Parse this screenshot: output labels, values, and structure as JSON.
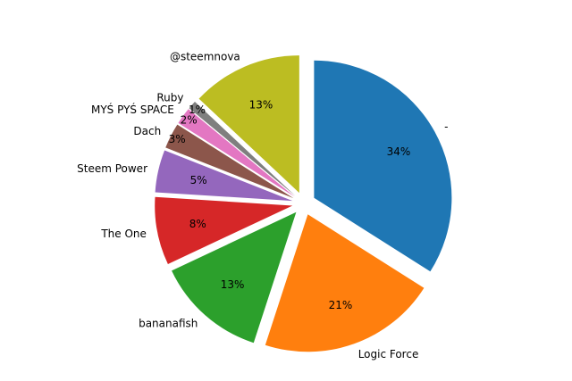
{
  "figure": {
    "background": "#ffffff"
  },
  "chart_data": {
    "type": "pie",
    "title": "",
    "start_angle_deg": 90,
    "direction": "clockwise",
    "legend": "none",
    "exploded": true,
    "slices": [
      {
        "label": "-",
        "value": 34,
        "pct_label": "34%",
        "color": "#1f77b4"
      },
      {
        "label": "Logic Force",
        "value": 21,
        "pct_label": "21%",
        "color": "#ff7f0e"
      },
      {
        "label": "bananafish",
        "value": 13,
        "pct_label": "13%",
        "color": "#2ca02c"
      },
      {
        "label": "The One",
        "value": 8,
        "pct_label": "8%",
        "color": "#d62728"
      },
      {
        "label": "Steem Power",
        "value": 5,
        "pct_label": "5%",
        "color": "#9467bd"
      },
      {
        "label": "Dach",
        "value": 3,
        "pct_label": "3%",
        "color": "#8c564b"
      },
      {
        "label": "MYŚ PYŚ SPACE",
        "value": 2,
        "pct_label": "2%",
        "color": "#e377c2"
      },
      {
        "label": "Ruby",
        "value": 1,
        "pct_label": "1%",
        "color": "#7f7f7f"
      },
      {
        "label": "@steemnova",
        "value": 13,
        "pct_label": "13%",
        "color": "#bcbd22"
      }
    ]
  }
}
